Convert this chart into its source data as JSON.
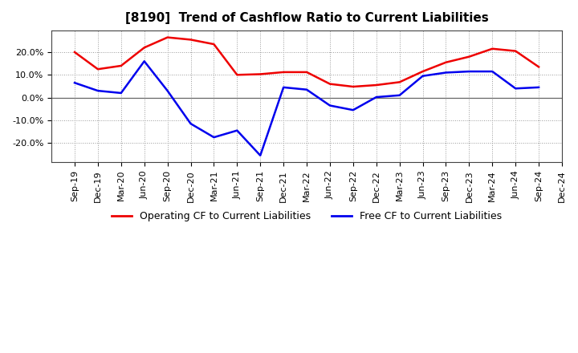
{
  "title": "[8190]  Trend of Cashflow Ratio to Current Liabilities",
  "x_labels": [
    "Sep-19",
    "Dec-19",
    "Mar-20",
    "Jun-20",
    "Sep-20",
    "Dec-20",
    "Mar-21",
    "Jun-21",
    "Sep-21",
    "Dec-21",
    "Mar-22",
    "Jun-22",
    "Sep-22",
    "Dec-22",
    "Mar-23",
    "Jun-23",
    "Sep-23",
    "Dec-23",
    "Mar-24",
    "Jun-24",
    "Sep-24",
    "Dec-24"
  ],
  "operating_cf": [
    0.2,
    0.125,
    0.14,
    0.22,
    0.265,
    0.255,
    0.235,
    0.1,
    0.103,
    0.112,
    0.112,
    0.06,
    0.048,
    0.055,
    0.068,
    0.115,
    0.155,
    0.18,
    0.215,
    0.205,
    0.135,
    null
  ],
  "free_cf": [
    0.065,
    0.03,
    0.02,
    0.16,
    0.03,
    -0.115,
    -0.175,
    -0.145,
    -0.255,
    0.045,
    0.035,
    -0.035,
    -0.055,
    0.002,
    0.01,
    0.095,
    0.11,
    0.115,
    0.115,
    0.04,
    0.045,
    null
  ],
  "ylim_min": -0.285,
  "ylim_max": 0.295,
  "yticks": [
    -0.2,
    -0.1,
    0.0,
    0.1,
    0.2
  ],
  "operating_color": "#EE0000",
  "free_color": "#0000EE",
  "background_color": "#FFFFFF",
  "plot_bg_color": "#FFFFFF",
  "grid_color": "#999999",
  "zero_line_color": "#666666",
  "line_width": 1.8,
  "title_fontsize": 11,
  "tick_fontsize": 8,
  "legend_fontsize": 9
}
